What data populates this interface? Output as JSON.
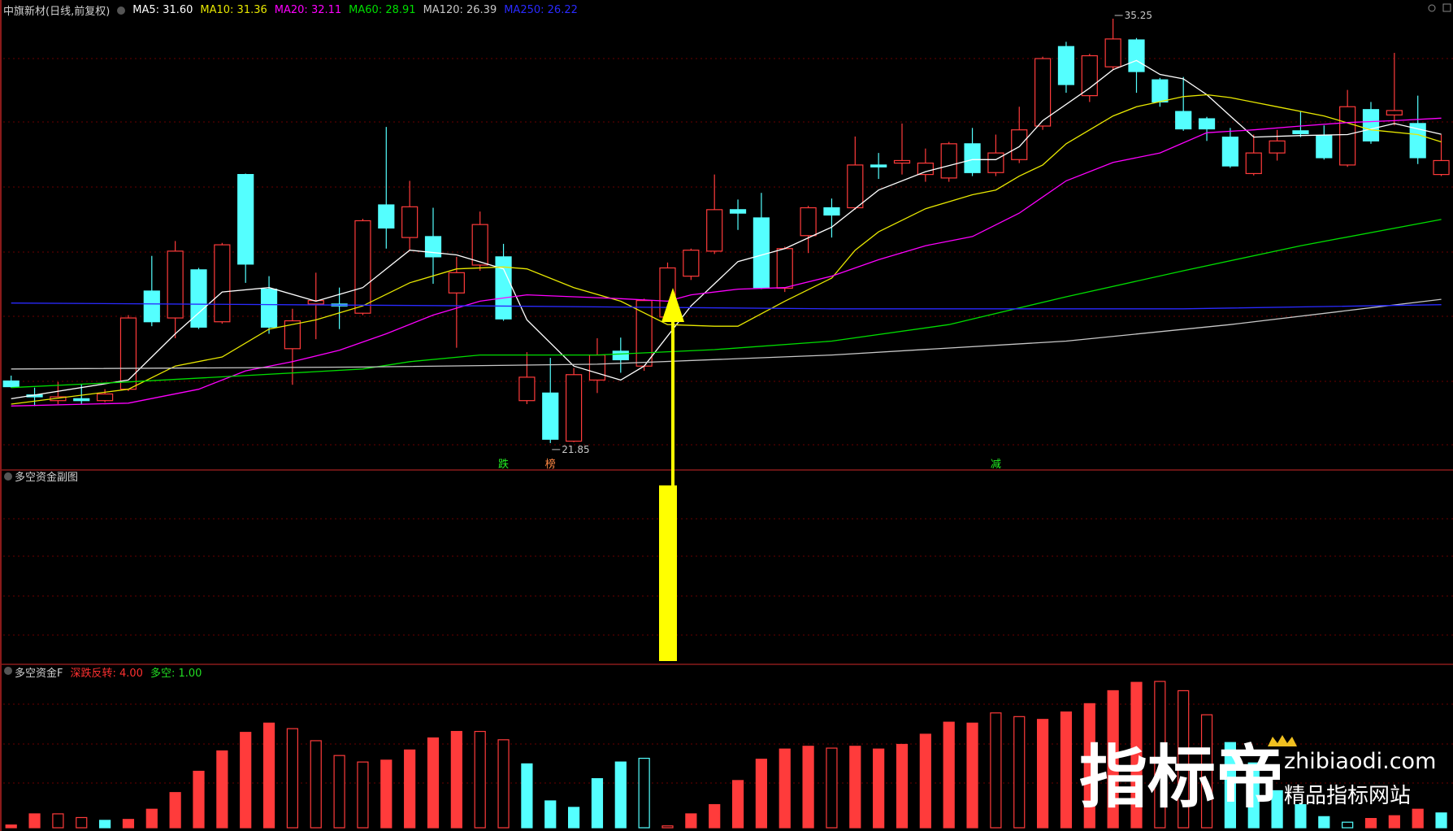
{
  "chart_data": [
    {
      "type": "candlestick",
      "title": "中旗新材(日线,前复权)",
      "open": [
        23.81,
        23.37,
        23.19,
        23.25,
        23.19,
        23.55,
        26.65,
        25.8,
        27.32,
        25.68,
        30.33,
        26.71,
        24.83,
        26.24,
        26.24,
        25.95,
        29.37,
        28.34,
        28.37,
        26.59,
        27.47,
        27.73,
        23.19,
        23.43,
        21.91,
        23.84,
        24.75,
        24.28,
        25.83,
        27.12,
        27.91,
        29.22,
        28.96,
        26.74,
        28.4,
        29.28,
        29.28,
        30.63,
        30.69,
        30.33,
        30.22,
        31.3,
        30.39,
        30.8,
        31.86,
        34.37,
        32.82,
        33.73,
        34.58,
        33.32,
        32.32,
        32.09,
        31.51,
        30.36,
        31.01,
        31.71,
        31.56,
        30.63,
        32.38,
        32.21,
        31.94,
        30.33
      ],
      "high": [
        23.98,
        23.6,
        23.78,
        23.72,
        23.55,
        25.89,
        27.76,
        28.23,
        27.38,
        28.17,
        30.36,
        27.12,
        26.09,
        27.23,
        26.76,
        28.93,
        31.83,
        30.13,
        29.28,
        27.73,
        29.16,
        28.14,
        24.72,
        24.54,
        24.22,
        25.16,
        25.18,
        26.41,
        27.55,
        27.99,
        30.33,
        29.54,
        29.75,
        28.05,
        29.34,
        29.57,
        31.53,
        31.01,
        31.94,
        31.15,
        31.36,
        31.8,
        31.59,
        32.47,
        34.05,
        34.52,
        34.14,
        35.25,
        34.64,
        33.38,
        33.41,
        32.15,
        31.8,
        31.59,
        31.74,
        32.32,
        31.88,
        33.0,
        32.62,
        34.17,
        32.82,
        31.59
      ],
      "low": [
        23.6,
        23.02,
        23.08,
        23.08,
        23.14,
        23.49,
        25.54,
        25.16,
        25.45,
        25.62,
        26.91,
        25.3,
        23.69,
        25.13,
        25.45,
        25.89,
        27.99,
        27.94,
        26.88,
        24.86,
        27.29,
        25.71,
        23.08,
        21.85,
        21.88,
        23.43,
        24.07,
        24.13,
        25.74,
        27.0,
        27.82,
        28.58,
        26.71,
        26.62,
        27.85,
        28.34,
        29.22,
        30.19,
        30.33,
        30.1,
        30.1,
        30.28,
        30.28,
        30.69,
        31.74,
        32.91,
        32.62,
        33.64,
        32.91,
        32.47,
        31.71,
        31.39,
        30.54,
        30.3,
        30.77,
        31.51,
        30.8,
        30.57,
        31.3,
        31.88,
        30.66,
        30.28
      ],
      "close": [
        23.63,
        23.31,
        23.31,
        23.19,
        23.4,
        25.8,
        25.68,
        27.91,
        25.51,
        28.11,
        27.5,
        25.51,
        25.71,
        26.35,
        26.18,
        28.87,
        28.64,
        29.31,
        27.73,
        27.23,
        28.75,
        25.77,
        23.93,
        21.97,
        24.01,
        24.63,
        24.48,
        26.35,
        27.38,
        27.94,
        29.22,
        29.11,
        26.76,
        27.99,
        29.28,
        29.05,
        30.63,
        30.57,
        30.77,
        30.69,
        31.3,
        30.39,
        31.01,
        31.74,
        33.99,
        33.17,
        34.08,
        34.61,
        33.58,
        32.62,
        31.77,
        31.77,
        30.6,
        31.01,
        31.39,
        31.62,
        30.86,
        32.47,
        31.39,
        32.35,
        30.86,
        30.77
      ],
      "up_color": "#ff3b3b",
      "down_color": "#54ffff",
      "ylim": [
        21.0,
        35.84
      ],
      "series": [
        {
          "name": "MA5: 31.60",
          "color": "#ffffff",
          "x": [
            0,
            5,
            7,
            9,
            11,
            13,
            15,
            17,
            19,
            21,
            22,
            24,
            26,
            27,
            29,
            31,
            33,
            35,
            37,
            39,
            41,
            42,
            43,
            44,
            46,
            47,
            48,
            49,
            50,
            51,
            52,
            53,
            55,
            57,
            59,
            61
          ],
          "values": [
            23.25,
            23.84,
            25.3,
            26.62,
            26.76,
            26.33,
            26.76,
            27.94,
            27.79,
            27.35,
            25.74,
            24.28,
            23.84,
            24.28,
            26.18,
            27.58,
            27.99,
            28.67,
            29.84,
            30.42,
            30.8,
            30.8,
            31.21,
            32.03,
            33.06,
            33.64,
            33.93,
            33.49,
            33.35,
            32.85,
            32.18,
            31.51,
            31.56,
            31.59,
            31.94,
            31.6
          ]
        },
        {
          "name": "MA10: 31.36",
          "color": "#e8e800",
          "x": [
            0,
            5,
            7,
            9,
            11,
            13,
            15,
            17,
            19,
            21,
            22,
            24,
            26,
            28,
            30,
            31,
            33,
            35,
            36,
            37,
            39,
            41,
            42,
            43,
            44,
            45,
            47,
            48,
            50,
            51,
            52,
            54,
            56,
            58,
            60,
            61
          ],
          "values": [
            23.08,
            23.55,
            24.28,
            24.57,
            25.45,
            25.74,
            26.18,
            26.91,
            27.35,
            27.41,
            27.35,
            26.76,
            26.33,
            25.59,
            25.54,
            25.54,
            26.33,
            27.06,
            27.94,
            28.52,
            29.25,
            29.69,
            29.84,
            30.28,
            30.63,
            31.3,
            32.18,
            32.47,
            32.79,
            32.85,
            32.76,
            32.47,
            32.18,
            31.74,
            31.59,
            31.36
          ]
        },
        {
          "name": "MA20: 32.11",
          "color": "#ff00ff",
          "x": [
            0,
            5,
            8,
            10,
            12,
            14,
            16,
            18,
            20,
            22,
            24,
            26,
            28,
            29,
            31,
            33,
            35,
            37,
            39,
            41,
            43,
            45,
            47,
            49,
            51,
            53,
            55,
            57,
            59,
            61
          ],
          "values": [
            23.02,
            23.11,
            23.55,
            24.13,
            24.42,
            24.78,
            25.3,
            25.89,
            26.33,
            26.53,
            26.47,
            26.41,
            26.33,
            26.53,
            26.71,
            26.76,
            27.12,
            27.64,
            28.08,
            28.37,
            29.11,
            30.13,
            30.71,
            31.01,
            31.65,
            31.74,
            31.86,
            31.97,
            32.03,
            32.11
          ]
        },
        {
          "name": "MA60: 28.91",
          "color": "#00dd00",
          "x": [
            0,
            5,
            10,
            15,
            17,
            20,
            25,
            30,
            35,
            40,
            45,
            50,
            55,
            61
          ],
          "values": [
            23.6,
            23.78,
            23.98,
            24.19,
            24.42,
            24.63,
            24.63,
            24.8,
            25.07,
            25.59,
            26.47,
            27.29,
            28.08,
            28.91
          ]
        },
        {
          "name": "MA120: 26.39",
          "color": "#c8c8c8",
          "x": [
            0,
            15,
            25,
            35,
            45,
            52,
            61
          ],
          "values": [
            24.19,
            24.25,
            24.34,
            24.63,
            25.07,
            25.59,
            26.39
          ]
        },
        {
          "name": "MA250: 26.22",
          "color": "#2a2aff",
          "x": [
            0,
            20,
            35,
            50,
            61
          ],
          "values": [
            26.27,
            26.18,
            26.09,
            26.09,
            26.22
          ]
        }
      ],
      "annotations": [
        {
          "label": "35.25",
          "value": 35.25,
          "at": "high"
        },
        {
          "label": "21.85",
          "value": 21.85,
          "at": "low"
        }
      ],
      "signals": [
        {
          "label": "跌",
          "x": 21,
          "color": "#22ee22"
        },
        {
          "label": "榜",
          "x": 23,
          "color": "#ff8844"
        },
        {
          "label": "减",
          "x": 42,
          "color": "#22ee22"
        }
      ]
    },
    {
      "type": "bar",
      "title": "多空资金F",
      "indicators": [
        {
          "name": "深跌反转: 4.00",
          "color": "#ff3030"
        },
        {
          "name": "多空: 1.00",
          "color": "#22dd22"
        }
      ],
      "values": [
        3,
        15,
        15,
        11,
        8,
        9,
        20,
        38,
        61,
        83,
        103,
        113,
        107,
        94,
        78,
        71,
        73,
        84,
        97,
        104,
        104,
        95,
        69,
        29,
        22,
        53,
        71,
        75,
        2,
        15,
        25,
        51,
        74,
        85,
        88,
        86,
        88,
        85,
        90,
        101,
        114,
        113,
        124,
        120,
        117,
        125,
        134,
        148,
        157,
        158,
        148,
        122,
        92,
        70,
        40,
        25,
        12,
        6,
        10,
        13,
        20,
        16
      ],
      "colors": [
        "#ff3b3b",
        "#ff3b3b",
        "#ff3b3b",
        "#ff3b3b",
        "#54ffff",
        "#ff3b3b",
        "#ff3b3b",
        "#ff3b3b",
        "#ff3b3b",
        "#ff3b3b",
        "#ff3b3b",
        "#ff3b3b",
        "#ff3b3b",
        "#ff3b3b",
        "#ff3b3b",
        "#ff3b3b",
        "#ff3b3b",
        "#ff3b3b",
        "#ff3b3b",
        "#ff3b3b",
        "#ff3b3b",
        "#ff3b3b",
        "#54ffff",
        "#54ffff",
        "#54ffff",
        "#54ffff",
        "#54ffff",
        "#54ffff",
        "#ff3b3b",
        "#ff3b3b",
        "#ff3b3b",
        "#ff3b3b",
        "#ff3b3b",
        "#ff3b3b",
        "#ff3b3b",
        "#ff3b3b",
        "#ff3b3b",
        "#ff3b3b",
        "#ff3b3b",
        "#ff3b3b",
        "#ff3b3b",
        "#ff3b3b",
        "#ff3b3b",
        "#ff3b3b",
        "#ff3b3b",
        "#ff3b3b",
        "#ff3b3b",
        "#ff3b3b",
        "#ff3b3b",
        "#ff3b3b",
        "#ff3b3b",
        "#ff3b3b",
        "#54ffff",
        "#54ffff",
        "#54ffff",
        "#54ffff",
        "#54ffff",
        "#54ffff",
        "#ff3b3b",
        "#ff3b3b",
        "#ff3b3b",
        "#54ffff"
      ],
      "hollow": [
        false,
        false,
        true,
        true,
        false,
        false,
        false,
        false,
        false,
        false,
        false,
        false,
        true,
        true,
        true,
        true,
        false,
        false,
        false,
        false,
        true,
        true,
        false,
        false,
        false,
        false,
        false,
        true,
        true,
        false,
        false,
        false,
        false,
        false,
        false,
        true,
        false,
        false,
        false,
        false,
        false,
        false,
        true,
        true,
        false,
        false,
        false,
        false,
        false,
        true,
        true,
        true,
        false,
        false,
        false,
        false,
        false,
        true,
        false,
        false,
        false,
        false
      ],
      "ylim": [
        0,
        180
      ]
    }
  ],
  "subpanel": {
    "title": "多空资金副图"
  },
  "watermark": {
    "brand": "指标帝",
    "site": "zhibiaodi.com",
    "slogan": "精品指标网站"
  }
}
